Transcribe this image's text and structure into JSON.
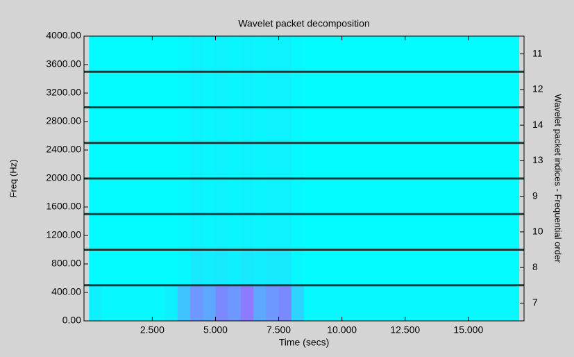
{
  "chart_data": {
    "type": "heatmap",
    "title": "Wavelet packet decomposition",
    "xlabel": "Time (secs)",
    "ylabel": "Freq (Hz)",
    "y2label": "Wavelet packet indices - Frequential order",
    "xlim": [
      -0.2,
      17.2
    ],
    "xticks": [
      {
        "value": 2.5,
        "label": "2.500"
      },
      {
        "value": 5,
        "label": "5.000"
      },
      {
        "value": 7.5,
        "label": "7.500"
      },
      {
        "value": 10,
        "label": "10.000"
      },
      {
        "value": 12.5,
        "label": "12.500"
      },
      {
        "value": 15,
        "label": "15.000"
      }
    ],
    "ylim": [
      0,
      4000
    ],
    "yticks": [
      {
        "value": 0,
        "label": "0.00"
      },
      {
        "value": 400,
        "label": "400.00"
      },
      {
        "value": 800,
        "label": "800.00"
      },
      {
        "value": 1200,
        "label": "1200.00"
      },
      {
        "value": 1600,
        "label": "1600.00"
      },
      {
        "value": 2000,
        "label": "2000.00"
      },
      {
        "value": 2400,
        "label": "2400.00"
      },
      {
        "value": 2800,
        "label": "2800.00"
      },
      {
        "value": 3200,
        "label": "3200.00"
      },
      {
        "value": 3600,
        "label": "3600.00"
      },
      {
        "value": 4000,
        "label": "4000.00"
      }
    ],
    "y2categories": [
      "7",
      "8",
      "10",
      "9",
      "13",
      "14",
      "12",
      "11"
    ],
    "bins": [
      0,
      0.5,
      1,
      1.5,
      2,
      2.5,
      3,
      3.5,
      4,
      4.5,
      5,
      5.5,
      6,
      6.5,
      7,
      7.5,
      8,
      8.5,
      9,
      9.5,
      10,
      10.5,
      11,
      11.5,
      12,
      12.5,
      13,
      13.5,
      14,
      14.5,
      15,
      15.5,
      16,
      16.5,
      17
    ],
    "colormap": [
      "#00ffff",
      "#9a6cff"
    ],
    "band_line_color": "#1d3a3a",
    "z": [
      [
        0.1,
        0.05,
        0.05,
        0.05,
        0.05,
        0.05,
        0.1,
        0.4,
        0.7,
        0.6,
        0.8,
        0.7,
        0.9,
        0.6,
        0.7,
        0.8,
        0.3,
        0.05,
        0.05,
        0.05,
        0.05,
        0.05,
        0.05,
        0.05,
        0.05,
        0.05,
        0.05,
        0.05,
        0.05,
        0.05,
        0.05,
        0.05,
        0.05,
        0.05
      ],
      [
        0.02,
        0.02,
        0.02,
        0.02,
        0.02,
        0.02,
        0.02,
        0.05,
        0.15,
        0.12,
        0.15,
        0.1,
        0.15,
        0.12,
        0.15,
        0.15,
        0.05,
        0.02,
        0.02,
        0.02,
        0.02,
        0.02,
        0.02,
        0.02,
        0.02,
        0.02,
        0.02,
        0.02,
        0.02,
        0.02,
        0.02,
        0.02,
        0.02,
        0.02
      ],
      [
        0.02,
        0.02,
        0.02,
        0.02,
        0.02,
        0.02,
        0.02,
        0.04,
        0.08,
        0.06,
        0.08,
        0.06,
        0.08,
        0.06,
        0.08,
        0.08,
        0.04,
        0.02,
        0.02,
        0.02,
        0.02,
        0.02,
        0.02,
        0.02,
        0.02,
        0.02,
        0.02,
        0.02,
        0.02,
        0.02,
        0.02,
        0.02,
        0.02,
        0.02
      ],
      [
        0.02,
        0.02,
        0.02,
        0.02,
        0.02,
        0.02,
        0.02,
        0.04,
        0.08,
        0.06,
        0.08,
        0.06,
        0.08,
        0.06,
        0.08,
        0.08,
        0.04,
        0.02,
        0.02,
        0.02,
        0.02,
        0.02,
        0.02,
        0.02,
        0.02,
        0.02,
        0.02,
        0.02,
        0.02,
        0.02,
        0.02,
        0.02,
        0.02,
        0.02
      ],
      [
        0.02,
        0.02,
        0.02,
        0.02,
        0.02,
        0.02,
        0.02,
        0.04,
        0.08,
        0.06,
        0.08,
        0.06,
        0.08,
        0.06,
        0.08,
        0.08,
        0.04,
        0.02,
        0.02,
        0.02,
        0.02,
        0.02,
        0.02,
        0.02,
        0.02,
        0.02,
        0.02,
        0.02,
        0.02,
        0.02,
        0.02,
        0.02,
        0.02,
        0.02
      ],
      [
        0.02,
        0.02,
        0.02,
        0.02,
        0.02,
        0.02,
        0.02,
        0.04,
        0.08,
        0.06,
        0.08,
        0.06,
        0.08,
        0.06,
        0.08,
        0.08,
        0.04,
        0.02,
        0.02,
        0.02,
        0.02,
        0.02,
        0.02,
        0.02,
        0.02,
        0.02,
        0.02,
        0.02,
        0.02,
        0.02,
        0.02,
        0.02,
        0.02,
        0.02
      ],
      [
        0.02,
        0.02,
        0.02,
        0.02,
        0.02,
        0.02,
        0.02,
        0.04,
        0.08,
        0.06,
        0.08,
        0.06,
        0.08,
        0.06,
        0.08,
        0.08,
        0.04,
        0.02,
        0.02,
        0.02,
        0.02,
        0.02,
        0.02,
        0.02,
        0.02,
        0.02,
        0.02,
        0.02,
        0.02,
        0.02,
        0.02,
        0.02,
        0.02,
        0.02
      ],
      [
        0.02,
        0.02,
        0.02,
        0.02,
        0.02,
        0.02,
        0.02,
        0.04,
        0.08,
        0.06,
        0.08,
        0.06,
        0.08,
        0.06,
        0.08,
        0.08,
        0.04,
        0.02,
        0.02,
        0.02,
        0.02,
        0.02,
        0.02,
        0.02,
        0.02,
        0.02,
        0.02,
        0.02,
        0.02,
        0.02,
        0.02,
        0.02,
        0.02,
        0.02
      ]
    ]
  }
}
